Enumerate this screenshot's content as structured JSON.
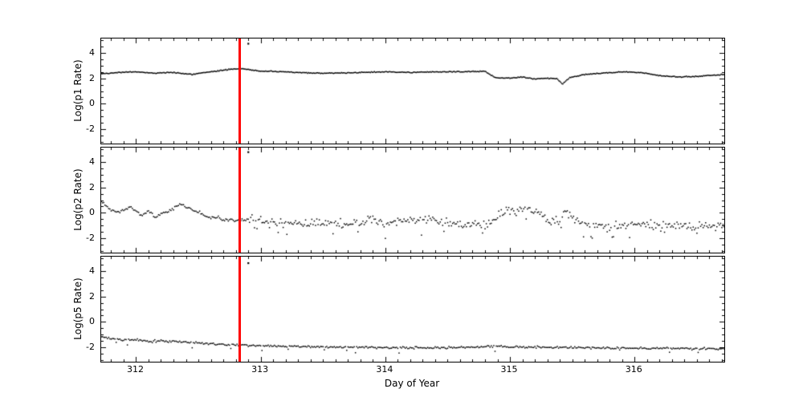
{
  "figure": {
    "background": "#ffffff",
    "frame_color": "#000000",
    "marker_color": "#000000",
    "xlabel": "Day of Year",
    "xlim": [
      311.72,
      316.72
    ],
    "x_major_ticks": [
      312,
      313,
      314,
      315,
      316
    ],
    "x_minor_step": 0.1,
    "ylim": [
      -3.1,
      5.1
    ],
    "y_major_ticks": [
      4,
      2,
      0,
      -2
    ],
    "y_minor_step": 0.5,
    "event_line": {
      "x": 312.83,
      "color": "#ff0000",
      "width": 3
    },
    "seed": 42
  },
  "chart_data": [
    {
      "type": "scatter",
      "ylabel": "Log(p1 Rate)",
      "xlabel": "Day of Year",
      "xlim": [
        311.72,
        316.72
      ],
      "ylim": [
        -3.1,
        5.1
      ],
      "marker": "point",
      "noise": 0.035,
      "step": 0.008,
      "anchors": [
        [
          311.72,
          2.35
        ],
        [
          311.85,
          2.45
        ],
        [
          312.0,
          2.5
        ],
        [
          312.15,
          2.4
        ],
        [
          312.3,
          2.45
        ],
        [
          312.45,
          2.3
        ],
        [
          312.6,
          2.5
        ],
        [
          312.75,
          2.7
        ],
        [
          312.85,
          2.75
        ],
        [
          313.0,
          2.55
        ],
        [
          313.2,
          2.5
        ],
        [
          313.4,
          2.4
        ],
        [
          313.6,
          2.4
        ],
        [
          313.8,
          2.45
        ],
        [
          314.0,
          2.5
        ],
        [
          314.2,
          2.45
        ],
        [
          314.4,
          2.5
        ],
        [
          314.6,
          2.5
        ],
        [
          314.8,
          2.55
        ],
        [
          314.88,
          2.05
        ],
        [
          315.0,
          2.0
        ],
        [
          315.1,
          2.1
        ],
        [
          315.2,
          1.95
        ],
        [
          315.3,
          2.0
        ],
        [
          315.38,
          1.95
        ],
        [
          315.42,
          1.55
        ],
        [
          315.48,
          2.05
        ],
        [
          315.6,
          2.3
        ],
        [
          315.75,
          2.4
        ],
        [
          315.9,
          2.5
        ],
        [
          316.05,
          2.45
        ],
        [
          316.2,
          2.2
        ],
        [
          316.35,
          2.1
        ],
        [
          316.5,
          2.15
        ],
        [
          316.65,
          2.25
        ],
        [
          316.72,
          2.3
        ]
      ],
      "noise_regions": [],
      "outliers": [
        [
          312.9,
          4.7
        ]
      ]
    },
    {
      "type": "scatter",
      "ylabel": "Log(p2 Rate)",
      "xlabel": "Day of Year",
      "xlim": [
        311.72,
        316.72
      ],
      "ylim": [
        -3.1,
        5.1
      ],
      "marker": "point",
      "noise": 0.33,
      "step": 0.01,
      "anchors": [
        [
          311.72,
          1.0
        ],
        [
          311.78,
          0.3
        ],
        [
          311.85,
          0.0
        ],
        [
          311.95,
          0.5
        ],
        [
          312.0,
          0.1
        ],
        [
          312.05,
          -0.2
        ],
        [
          312.1,
          0.2
        ],
        [
          312.15,
          -0.3
        ],
        [
          312.2,
          -0.1
        ],
        [
          312.3,
          0.3
        ],
        [
          312.35,
          0.8
        ],
        [
          312.4,
          0.45
        ],
        [
          312.45,
          0.25
        ],
        [
          312.5,
          0.1
        ],
        [
          312.55,
          -0.2
        ],
        [
          312.6,
          -0.4
        ],
        [
          312.65,
          -0.3
        ],
        [
          312.7,
          -0.6
        ],
        [
          312.75,
          -0.5
        ],
        [
          312.8,
          -0.6
        ],
        [
          312.85,
          -0.5
        ],
        [
          313.0,
          -0.6
        ],
        [
          313.2,
          -0.8
        ],
        [
          313.4,
          -0.8
        ],
        [
          313.6,
          -0.9
        ],
        [
          313.8,
          -0.6
        ],
        [
          313.9,
          -0.5
        ],
        [
          314.0,
          -0.8
        ],
        [
          314.2,
          -0.6
        ],
        [
          314.3,
          -0.5
        ],
        [
          314.5,
          -0.8
        ],
        [
          314.6,
          -0.9
        ],
        [
          314.8,
          -0.8
        ],
        [
          314.9,
          -0.3
        ],
        [
          315.0,
          0.3
        ],
        [
          315.05,
          0.1
        ],
        [
          315.1,
          0.4
        ],
        [
          315.2,
          0.2
        ],
        [
          315.3,
          -0.6
        ],
        [
          315.4,
          -0.7
        ],
        [
          315.45,
          0.3
        ],
        [
          315.5,
          -0.3
        ],
        [
          315.6,
          -0.9
        ],
        [
          315.8,
          -1.0
        ],
        [
          316.0,
          -0.9
        ],
        [
          316.2,
          -1.0
        ],
        [
          316.4,
          -1.0
        ],
        [
          316.6,
          -1.0
        ],
        [
          316.72,
          -0.9
        ]
      ],
      "noise_regions": [
        {
          "from": 311.72,
          "to": 312.85,
          "sigma": 0.11
        },
        {
          "from": 312.85,
          "to": 316.72,
          "sigma": 0.33
        }
      ],
      "spike": {
        "from": 312.85,
        "prob": 0.07,
        "mag": 0.9
      },
      "outliers": [
        [
          312.9,
          4.75
        ]
      ]
    },
    {
      "type": "scatter",
      "ylabel": "Log(p5 Rate)",
      "xlabel": "Day of Year",
      "xlim": [
        311.72,
        316.72
      ],
      "ylim": [
        -3.1,
        5.1
      ],
      "marker": "point",
      "noise": 0.08,
      "step": 0.01,
      "anchors": [
        [
          311.72,
          -1.1
        ],
        [
          311.8,
          -1.3
        ],
        [
          311.9,
          -1.45
        ],
        [
          312.0,
          -1.4
        ],
        [
          312.1,
          -1.5
        ],
        [
          312.2,
          -1.45
        ],
        [
          312.35,
          -1.55
        ],
        [
          312.5,
          -1.65
        ],
        [
          312.7,
          -1.75
        ],
        [
          312.85,
          -1.8
        ],
        [
          313.0,
          -1.85
        ],
        [
          313.2,
          -1.9
        ],
        [
          313.5,
          -1.95
        ],
        [
          314.0,
          -2.0
        ],
        [
          314.5,
          -2.0
        ],
        [
          314.9,
          -1.9
        ],
        [
          315.0,
          -1.95
        ],
        [
          315.5,
          -2.0
        ],
        [
          316.0,
          -2.05
        ],
        [
          316.5,
          -2.05
        ],
        [
          316.72,
          -2.1
        ]
      ],
      "noise_regions": [],
      "spike": {
        "from": 311.72,
        "prob": 0.03,
        "mag": 0.35
      },
      "outliers": [
        [
          312.9,
          4.6
        ]
      ]
    }
  ]
}
